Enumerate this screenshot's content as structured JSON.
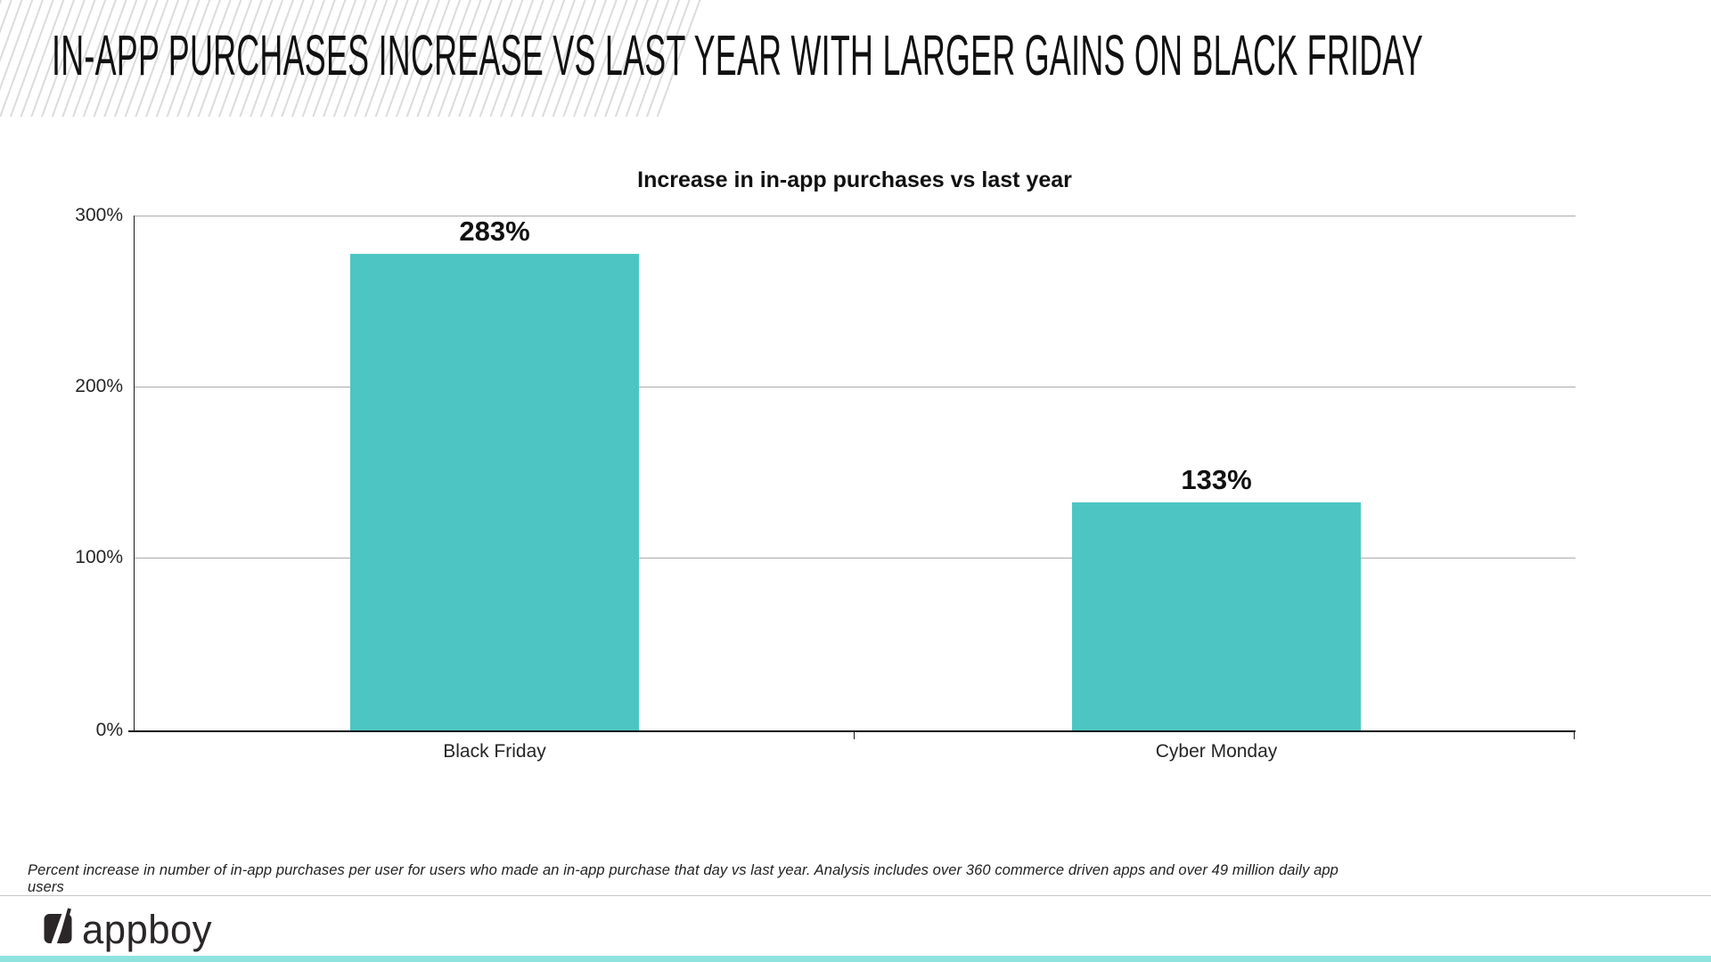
{
  "slide": {
    "title": "IN-APP PURCHASES INCREASE VS LAST YEAR WITH LARGER GAINS ON BLACK FRIDAY",
    "footnote": "Percent increase in number of in-app purchases per user for users who made an in-app purchase that day vs last year.  Analysis includes over 360 commerce driven apps and over 49 million daily app users",
    "brand_wordmark": "appboy"
  },
  "chart_data": {
    "type": "bar",
    "title": "Increase in in-app purchases vs last year",
    "categories": [
      "Black Friday",
      "Cyber Monday"
    ],
    "values": [
      283,
      133
    ],
    "value_labels": [
      "283%",
      "133%"
    ],
    "y_ticks": [
      "300%",
      "200%",
      "100%",
      "0%"
    ],
    "ylim": [
      0,
      300
    ],
    "grid": true,
    "legend": "none",
    "xlabel": "",
    "ylabel": ""
  },
  "colors": {
    "bar": "#4dc6c3",
    "bottom_strip": "#8fe3de",
    "axis": "#0d0d0d",
    "gridline": "#ababab",
    "title_text": "#111111"
  }
}
